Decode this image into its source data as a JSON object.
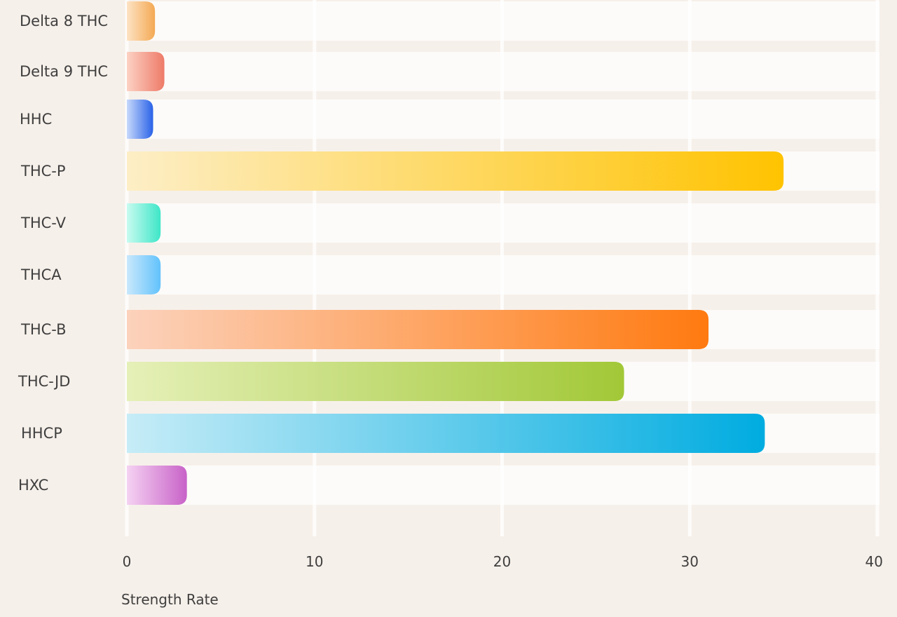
{
  "chart_data": {
    "type": "bar",
    "orientation": "horizontal",
    "categories": [
      "Delta 8 THC",
      "Delta 9 THC",
      "HHC",
      "THC-P",
      "THC-V",
      "THCA",
      "THC-B",
      "THC-JD",
      "HHCP",
      "HXC"
    ],
    "values": [
      1.5,
      2,
      1.4,
      35,
      1.8,
      1.8,
      31,
      26.5,
      34,
      3.2
    ],
    "xlabel": "Strength Rate",
    "ylabel": "",
    "xlim": [
      0,
      40
    ],
    "xticks": [
      0,
      10,
      20,
      30,
      40
    ],
    "grid": true,
    "legend": "none",
    "bar_colors": [
      [
        "#fde3c4",
        "#f4a954"
      ],
      [
        "#fcd2c4",
        "#ee7a68"
      ],
      [
        "#c7d9fb",
        "#2a62e8"
      ],
      [
        "#fdeec6",
        "#ffc300"
      ],
      [
        "#c8fbf0",
        "#3ee6c8"
      ],
      [
        "#c9e8fc",
        "#62c2fc"
      ],
      [
        "#fcd2bc",
        "#ff7a10"
      ],
      [
        "#e5f0b8",
        "#a2c837"
      ],
      [
        "#c6ecf7",
        "#00ace0"
      ],
      [
        "#f5d2f2",
        "#c862c8"
      ]
    ]
  }
}
